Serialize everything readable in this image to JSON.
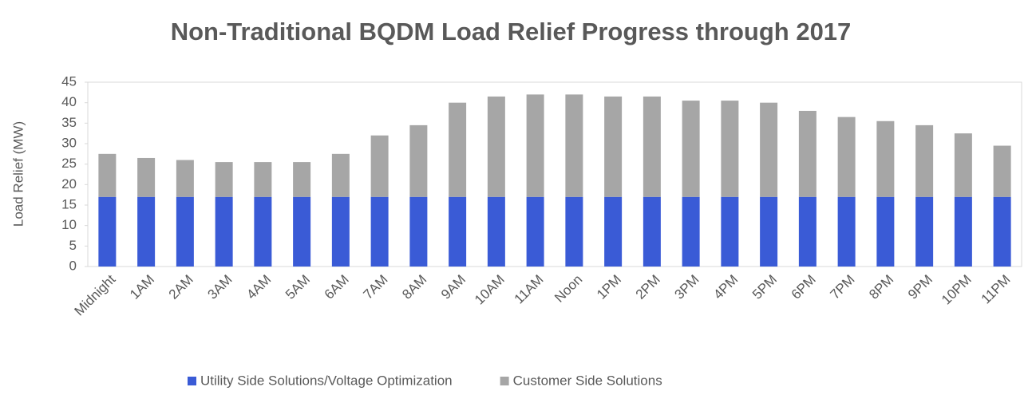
{
  "chart_data": {
    "type": "stacked_bar",
    "title": "Non-Traditional BQDM Load Relief Progress through 2017",
    "y_label": "Load Relief (MW)",
    "categories": [
      "Midnight",
      "1AM",
      "2AM",
      "3AM",
      "4AM",
      "5AM",
      "6AM",
      "7AM",
      "8AM",
      "9AM",
      "10AM",
      "11AM",
      "Noon",
      "1PM",
      "2PM",
      "3PM",
      "4PM",
      "5PM",
      "6PM",
      "7PM",
      "8PM",
      "9PM",
      "10PM",
      "11PM"
    ],
    "series": [
      {
        "name": "Utility Side Solutions/Voltage Optimization",
        "color": "#3a5bd6",
        "values": [
          17,
          17,
          17,
          17,
          17,
          17,
          17,
          17,
          17,
          17,
          17,
          17,
          17,
          17,
          17,
          17,
          17,
          17,
          17,
          17,
          17,
          17,
          17,
          17
        ]
      },
      {
        "name": "Customer Side Solutions",
        "color": "#a6a6a6",
        "values": [
          10.5,
          9.5,
          9,
          8.5,
          8.5,
          8.5,
          10.5,
          15,
          17.5,
          23,
          24.5,
          25,
          25,
          24.5,
          24.5,
          23.5,
          23.5,
          23,
          21,
          19.5,
          18.5,
          17.5,
          15.5,
          12.5
        ]
      }
    ],
    "ylim": [
      0,
      45
    ],
    "yticks": [
      0,
      5,
      10,
      15,
      20,
      25,
      30,
      35,
      40,
      45
    ],
    "legend": "bottom"
  }
}
